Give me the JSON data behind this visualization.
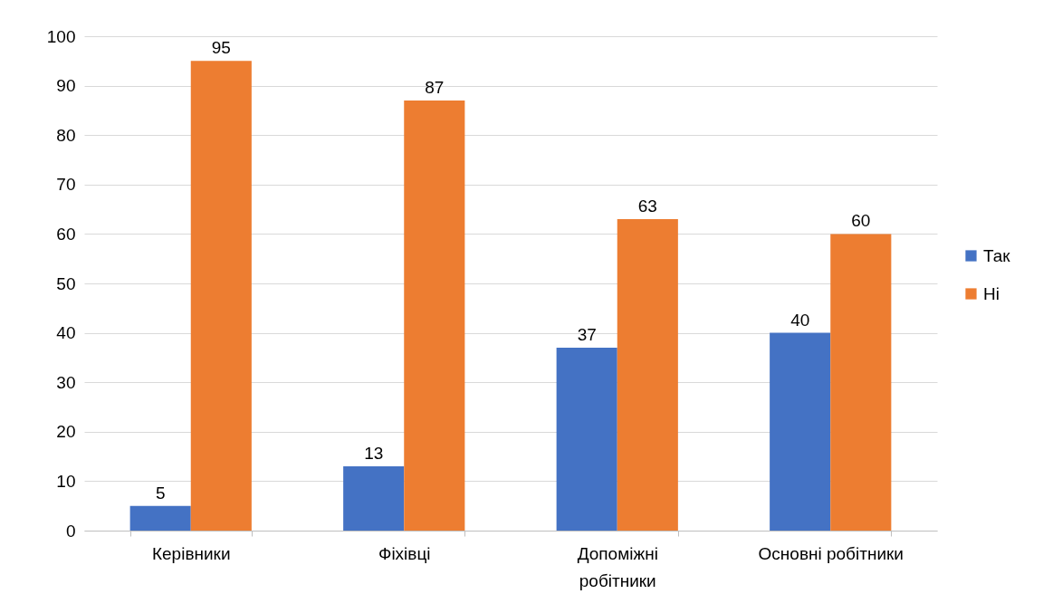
{
  "chart_data": {
    "type": "bar",
    "categories": [
      "Керівники",
      "Фіхівці",
      "Допоміжні робітники",
      "Основні робітники"
    ],
    "series": [
      {
        "name": "Так",
        "color": "#4472c4",
        "values": [
          5,
          13,
          37,
          40
        ]
      },
      {
        "name": "Ні",
        "color": "#ed7d31",
        "values": [
          95,
          87,
          63,
          60
        ]
      }
    ],
    "ylim": [
      0,
      100
    ],
    "yticks": [
      0,
      10,
      20,
      30,
      40,
      50,
      60,
      70,
      80,
      90,
      100
    ],
    "grid": "y",
    "legend": "right",
    "data_labels": true
  }
}
